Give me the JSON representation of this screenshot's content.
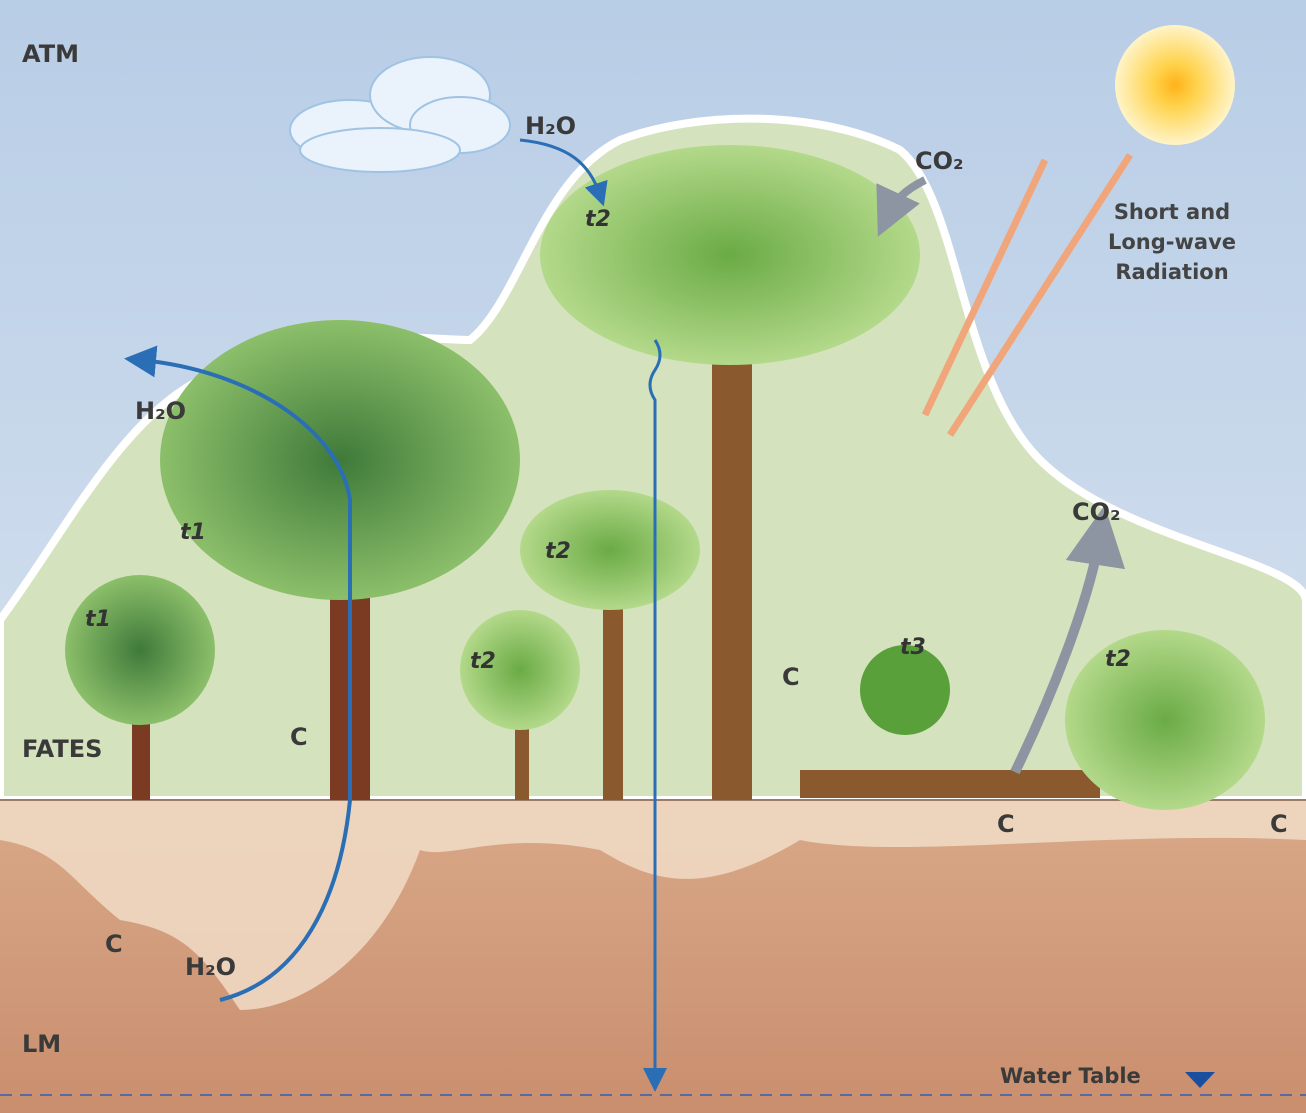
{
  "layers": {
    "atmosphere": "ATM",
    "vegetation": "FATES",
    "land": "LM"
  },
  "water_table": "Water Table",
  "radiation": [
    "Short and",
    "Long-wave",
    "Radiation"
  ],
  "water_labels": [
    "H₂O",
    "H₂O",
    "H₂O"
  ],
  "co2_labels": [
    "CO₂",
    "CO₂"
  ],
  "carbon_labels": [
    "C",
    "C",
    "C",
    "C",
    "C"
  ],
  "tree_types": [
    "t2",
    "t1",
    "t1",
    "t2",
    "t2",
    "t3",
    "t2"
  ]
}
